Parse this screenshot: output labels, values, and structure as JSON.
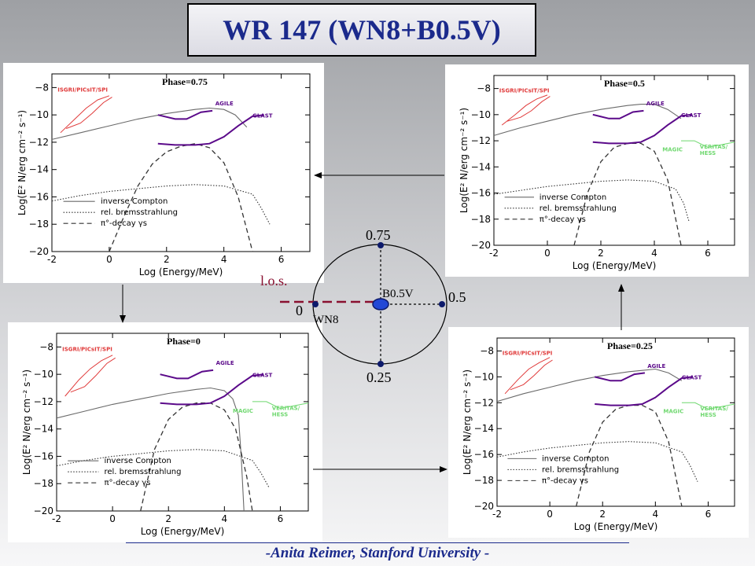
{
  "title": "WR 147  (WN8+B0.5V)",
  "footer": "-Anita Reimer, Stanford University -",
  "orbit": {
    "los_label": "l.o.s.",
    "companion_label": "B0.5V",
    "star_label": "WN8",
    "phase_top": "0.75",
    "phase_right": "0.5",
    "phase_bottom": "0.25",
    "phase_left": "0"
  },
  "colors": {
    "title": "#1b2a8c",
    "purple": "#5b0a8a",
    "red": "#e03a3a",
    "green": "#6fd86f",
    "gray_model": "#6a6a6a",
    "navy": "#0d1a6b",
    "los": "#8a1030"
  },
  "chart_data": [
    {
      "id": "phase075",
      "type": "line",
      "phase_label": "Phase=0.75",
      "xlabel": "Log (Energy/MeV)",
      "ylabel": "Log(E² N/erg cm⁻² s⁻¹)",
      "xlim": [
        -2,
        7
      ],
      "ylim": [
        -20,
        -7
      ],
      "xticks": [
        -2,
        0,
        2,
        4,
        6
      ],
      "yticks": [
        -8,
        -10,
        -12,
        -14,
        -16,
        -18,
        -20
      ],
      "legend": [
        "inverse Compton",
        "rel. bremsstrahlung",
        "π°-decay γs"
      ],
      "instruments": [
        "ISGRI/PICsIT/SPI",
        "AGILE",
        "GLAST"
      ],
      "series": [
        {
          "name": "inverse Compton",
          "style": "solid",
          "x": [
            -2,
            -1,
            0,
            1,
            2,
            3,
            3.5,
            4,
            4.4,
            4.8
          ],
          "y": [
            -11.8,
            -11.3,
            -10.8,
            -10.3,
            -9.9,
            -9.6,
            -9.5,
            -9.6,
            -10.0,
            -10.9
          ]
        },
        {
          "name": "rel. bremsstrahlung",
          "style": "dotted",
          "x": [
            -2,
            -1,
            0,
            1,
            2,
            3,
            4,
            5,
            5.3,
            5.6
          ],
          "y": [
            -16.3,
            -15.9,
            -15.6,
            -15.4,
            -15.2,
            -15.1,
            -15.2,
            -15.8,
            -16.8,
            -18.0
          ]
        },
        {
          "name": "π°-decay γs",
          "style": "dashed",
          "x": [
            0,
            0.5,
            1,
            1.5,
            2,
            2.5,
            3,
            3.5,
            4,
            4.5,
            5
          ],
          "y": [
            -20,
            -17.5,
            -15.2,
            -13.6,
            -12.7,
            -12.3,
            -12.1,
            -12.4,
            -13.5,
            -16.0,
            -20
          ]
        }
      ],
      "sensitivity": {
        "isgri": [
          {
            "x": [
              -1.7,
              -1.2,
              -0.8,
              -0.4,
              0
            ],
            "y": [
              -11.3,
              -10.3,
              -9.5,
              -8.9,
              -8.6
            ]
          },
          {
            "x": [
              -1.5,
              -1.0,
              -0.6,
              -0.2,
              0.1
            ],
            "y": [
              -11.0,
              -10.6,
              -9.9,
              -9.1,
              -8.7
            ]
          }
        ],
        "agile": {
          "x": [
            1.7,
            2.3,
            2.7,
            3.2,
            3.6
          ],
          "y": [
            -10.0,
            -10.3,
            -10.3,
            -9.8,
            -9.7
          ]
        },
        "glast": {
          "x": [
            1.7,
            2.3,
            3.0,
            3.5,
            4.0,
            4.5,
            5.0,
            5.4
          ],
          "y": [
            -12.1,
            -12.2,
            -12.2,
            -12.1,
            -11.6,
            -10.8,
            -10.1,
            -10.0
          ]
        },
        "magic": null
      }
    },
    {
      "id": "phase05",
      "type": "line",
      "phase_label": "Phase=0.5",
      "xlabel": "Log (Energy/MeV)",
      "ylabel": "Log(E² N/erg cm⁻² s⁻¹)",
      "xlim": [
        -2,
        7
      ],
      "ylim": [
        -20,
        -7
      ],
      "xticks": [
        -2,
        0,
        2,
        4,
        6
      ],
      "yticks": [
        -8,
        -10,
        -12,
        -14,
        -16,
        -18,
        -20
      ],
      "legend": [
        "inverse Compton",
        "rel. bremsstrahlung",
        "π°-decay γs"
      ],
      "instruments": [
        "ISGRI/PICsIT/SPI",
        "AGILE",
        "GLAST",
        "MAGIC",
        "VERITAS/HESS"
      ],
      "series": [
        {
          "name": "inverse Compton",
          "style": "solid",
          "x": [
            -2,
            -1,
            0,
            1,
            2,
            3,
            3.5,
            4,
            4.5,
            5
          ],
          "y": [
            -11.6,
            -11.0,
            -10.5,
            -10.0,
            -9.6,
            -9.3,
            -9.2,
            -9.2,
            -9.6,
            -10.3
          ]
        },
        {
          "name": "rel. bremsstrahlung",
          "style": "dotted",
          "x": [
            -2,
            -1,
            0,
            1,
            2,
            3,
            4,
            4.8,
            5.1,
            5.3
          ],
          "y": [
            -16.1,
            -15.8,
            -15.5,
            -15.3,
            -15.1,
            -15.0,
            -15.1,
            -15.7,
            -16.8,
            -18.2
          ]
        },
        {
          "name": "π°-decay γs",
          "style": "dashed",
          "x": [
            1.0,
            1.5,
            2,
            2.5,
            3,
            3.5,
            4,
            4.5,
            5
          ],
          "y": [
            -20,
            -16.0,
            -13.6,
            -12.5,
            -12.2,
            -12.2,
            -12.8,
            -15.0,
            -20
          ]
        }
      ],
      "sensitivity": {
        "isgri": [
          {
            "x": [
              -1.7,
              -1.2,
              -0.8,
              -0.4,
              0
            ],
            "y": [
              -10.8,
              -10.0,
              -9.3,
              -8.8,
              -8.5
            ]
          },
          {
            "x": [
              -1.5,
              -1.0,
              -0.6,
              -0.2,
              0.1
            ],
            "y": [
              -10.5,
              -10.2,
              -9.7,
              -9.0,
              -8.6
            ]
          }
        ],
        "agile": {
          "x": [
            1.7,
            2.3,
            2.7,
            3.2,
            3.6
          ],
          "y": [
            -10.0,
            -10.3,
            -10.3,
            -9.8,
            -9.7
          ]
        },
        "glast": {
          "x": [
            1.7,
            2.3,
            3.0,
            3.5,
            4.0,
            4.5,
            5.0,
            5.4
          ],
          "y": [
            -12.1,
            -12.2,
            -12.2,
            -12.1,
            -11.6,
            -10.8,
            -10.1,
            -10.0
          ]
        },
        "magic": {
          "x": [
            5.0,
            5.5,
            6.0,
            6.5,
            7.0
          ],
          "y": [
            -12.0,
            -12.0,
            -12.5,
            -12.3,
            -12.1
          ]
        }
      }
    },
    {
      "id": "phase0",
      "type": "line",
      "phase_label": "Phase=0",
      "xlabel": "Log (Energy/MeV)",
      "ylabel": "Log(E² N/erg cm⁻² s⁻¹)",
      "xlim": [
        -2,
        7
      ],
      "ylim": [
        -20,
        -7
      ],
      "xticks": [
        -2,
        0,
        2,
        4,
        6
      ],
      "yticks": [
        -8,
        -10,
        -12,
        -14,
        -16,
        -18,
        -20
      ],
      "legend": [
        "inverse Compton",
        "rel. bremsstrahlung",
        "π°-decay γs"
      ],
      "instruments": [
        "ISGRI/PICsIT/SPI",
        "AGILE",
        "GLAST",
        "MAGIC",
        "VERITAS/HESS"
      ],
      "series": [
        {
          "name": "inverse Compton",
          "style": "solid",
          "x": [
            -2,
            -1,
            0,
            1,
            2,
            3,
            3.5,
            4,
            4.3,
            4.5,
            4.6,
            4.7
          ],
          "y": [
            -13.2,
            -12.7,
            -12.2,
            -11.8,
            -11.4,
            -11.1,
            -11.0,
            -11.2,
            -11.8,
            -13.0,
            -16.0,
            -20
          ]
        },
        {
          "name": "rel. bremsstrahlung",
          "style": "dotted",
          "x": [
            -2,
            -1,
            0,
            1,
            2,
            3,
            4,
            5,
            5.3,
            5.6
          ],
          "y": [
            -16.7,
            -16.3,
            -16.0,
            -15.8,
            -15.6,
            -15.5,
            -15.6,
            -16.3,
            -17.2,
            -18.3
          ]
        },
        {
          "name": "π°-decay γs",
          "style": "dashed",
          "x": [
            1.0,
            1.5,
            2,
            2.5,
            3,
            3.5,
            4,
            4.4,
            4.8,
            5.0
          ],
          "y": [
            -20,
            -15.5,
            -13.3,
            -12.4,
            -12.1,
            -12.1,
            -12.6,
            -14.0,
            -17.5,
            -20
          ]
        }
      ],
      "sensitivity": {
        "isgri": [
          {
            "x": [
              -1.7,
              -1.2,
              -0.8,
              -0.4,
              0
            ],
            "y": [
              -11.6,
              -10.4,
              -9.6,
              -9.0,
              -8.6
            ]
          },
          {
            "x": [
              -1.5,
              -1.0,
              -0.6,
              -0.2,
              0.1
            ],
            "y": [
              -11.3,
              -10.9,
              -10.1,
              -9.2,
              -8.8
            ]
          }
        ],
        "agile": {
          "x": [
            1.7,
            2.3,
            2.7,
            3.2,
            3.6
          ],
          "y": [
            -10.0,
            -10.3,
            -10.3,
            -9.8,
            -9.7
          ]
        },
        "glast": {
          "x": [
            1.7,
            2.3,
            3.0,
            3.5,
            4.0,
            4.5,
            5.0,
            5.4
          ],
          "y": [
            -12.1,
            -12.2,
            -12.2,
            -12.1,
            -11.6,
            -10.8,
            -10.1,
            -10.0
          ]
        },
        "magic": {
          "x": [
            5.0,
            5.5,
            6.0,
            6.5,
            7.0
          ],
          "y": [
            -12.0,
            -12.0,
            -12.5,
            -12.3,
            -12.1
          ]
        }
      }
    },
    {
      "id": "phase025",
      "type": "line",
      "phase_label": "Phase=0.25",
      "xlabel": "Log (Energy/MeV)",
      "ylabel": "Log(E² N/erg cm⁻² s⁻¹)",
      "xlim": [
        -2,
        7
      ],
      "ylim": [
        -20,
        -7
      ],
      "xticks": [
        -2,
        0,
        2,
        4,
        6
      ],
      "yticks": [
        -8,
        -10,
        -12,
        -14,
        -16,
        -18,
        -20
      ],
      "legend": [
        "inverse Compton",
        "rel. bremsstrahlung",
        "π°-decay γs"
      ],
      "instruments": [
        "ISGRI/PICsIT/SPI",
        "AGILE",
        "GLAST",
        "MAGIC",
        "VERITAS/HESS"
      ],
      "series": [
        {
          "name": "inverse Compton",
          "style": "solid",
          "x": [
            -2,
            -1,
            0,
            1,
            2,
            3,
            3.5,
            4,
            4.5,
            5
          ],
          "y": [
            -11.9,
            -11.3,
            -10.8,
            -10.3,
            -9.9,
            -9.6,
            -9.5,
            -9.4,
            -9.7,
            -10.3
          ]
        },
        {
          "name": "rel. bremsstrahlung",
          "style": "dotted",
          "x": [
            -2,
            -1,
            0,
            1,
            2,
            3,
            4,
            5,
            5.3,
            5.6
          ],
          "y": [
            -16.2,
            -15.8,
            -15.5,
            -15.3,
            -15.1,
            -15.0,
            -15.1,
            -15.8,
            -16.8,
            -18.1
          ]
        },
        {
          "name": "π°-decay γs",
          "style": "dashed",
          "x": [
            1.0,
            1.5,
            2,
            2.5,
            3,
            3.5,
            4,
            4.5,
            5
          ],
          "y": [
            -20,
            -15.8,
            -13.5,
            -12.5,
            -12.2,
            -12.2,
            -12.7,
            -15.0,
            -20
          ]
        }
      ],
      "sensitivity": {
        "isgri": [
          {
            "x": [
              -1.7,
              -1.2,
              -0.8,
              -0.4,
              0
            ],
            "y": [
              -11.3,
              -10.2,
              -9.4,
              -8.9,
              -8.5
            ]
          },
          {
            "x": [
              -1.5,
              -1.0,
              -0.6,
              -0.2,
              0.1
            ],
            "y": [
              -11.0,
              -10.6,
              -9.9,
              -9.1,
              -8.7
            ]
          }
        ],
        "agile": {
          "x": [
            1.7,
            2.3,
            2.7,
            3.2,
            3.6
          ],
          "y": [
            -10.0,
            -10.3,
            -10.3,
            -9.8,
            -9.7
          ]
        },
        "glast": {
          "x": [
            1.7,
            2.3,
            3.0,
            3.5,
            4.0,
            4.5,
            5.0,
            5.4
          ],
          "y": [
            -12.1,
            -12.2,
            -12.2,
            -12.1,
            -11.6,
            -10.8,
            -10.1,
            -10.0
          ]
        },
        "magic": {
          "x": [
            5.0,
            5.5,
            6.0,
            6.5,
            7.0
          ],
          "y": [
            -12.0,
            -12.0,
            -12.5,
            -12.3,
            -12.1
          ]
        }
      }
    }
  ]
}
